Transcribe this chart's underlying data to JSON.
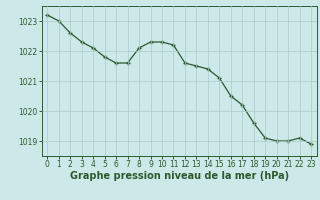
{
  "x": [
    0,
    1,
    2,
    3,
    4,
    5,
    6,
    7,
    8,
    9,
    10,
    11,
    12,
    13,
    14,
    15,
    16,
    17,
    18,
    19,
    20,
    21,
    22,
    23
  ],
  "y": [
    1023.2,
    1023.0,
    1022.6,
    1022.3,
    1022.1,
    1021.8,
    1021.6,
    1021.6,
    1022.1,
    1022.3,
    1022.3,
    1022.2,
    1021.6,
    1021.5,
    1021.4,
    1021.1,
    1020.5,
    1020.2,
    1019.6,
    1019.1,
    1019.0,
    1019.0,
    1019.1,
    1018.9
  ],
  "line_color": "#2d5a2d",
  "marker": "+",
  "bg_color": "#cce8e8",
  "grid_color": "#aacccc",
  "xlabel": "Graphe pression niveau de la mer (hPa)",
  "ylim": [
    1018.5,
    1023.5
  ],
  "xlim": [
    -0.5,
    23.5
  ],
  "yticks": [
    1019,
    1020,
    1021,
    1022,
    1023
  ],
  "xticks": [
    0,
    1,
    2,
    3,
    4,
    5,
    6,
    7,
    8,
    9,
    10,
    11,
    12,
    13,
    14,
    15,
    16,
    17,
    18,
    19,
    20,
    21,
    22,
    23
  ],
  "tick_fontsize": 5.5,
  "xlabel_fontsize": 7.0,
  "linewidth": 0.9,
  "markersize": 3.5,
  "marker_ew": 1.0
}
